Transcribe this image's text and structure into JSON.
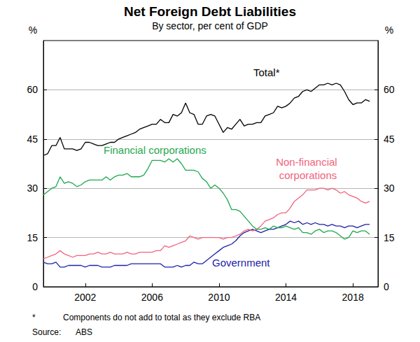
{
  "chart_data": {
    "type": "line",
    "title": "Net Foreign Debt Liabilities",
    "subtitle": "By sector, per cent of GDP",
    "y_unit": "%",
    "footnote_marker": "*",
    "footnote": "Components do not add to total as they exclude RBA",
    "source_label": "Source:",
    "source": "ABS",
    "xlim": [
      1999.5,
      2019.5
    ],
    "xticks": [
      2002,
      2006,
      2010,
      2014,
      2018
    ],
    "ylim": [
      0,
      75
    ],
    "yticks": [
      0,
      15,
      30,
      45,
      60
    ],
    "grid": true,
    "x": [
      1999.5,
      1999.75,
      2000,
      2000.25,
      2000.5,
      2000.75,
      2001,
      2001.25,
      2001.5,
      2001.75,
      2002,
      2002.25,
      2002.5,
      2002.75,
      2003,
      2003.25,
      2003.5,
      2003.75,
      2004,
      2004.25,
      2004.5,
      2004.75,
      2005,
      2005.25,
      2005.5,
      2005.75,
      2006,
      2006.25,
      2006.5,
      2006.75,
      2007,
      2007.25,
      2007.5,
      2007.75,
      2008,
      2008.25,
      2008.5,
      2008.75,
      2009,
      2009.25,
      2009.5,
      2009.75,
      2010,
      2010.25,
      2010.5,
      2010.75,
      2011,
      2011.25,
      2011.5,
      2011.75,
      2012,
      2012.25,
      2012.5,
      2012.75,
      2013,
      2013.25,
      2013.5,
      2013.75,
      2014,
      2014.25,
      2014.5,
      2014.75,
      2015,
      2015.25,
      2015.5,
      2015.75,
      2016,
      2016.25,
      2016.5,
      2016.75,
      2017,
      2017.25,
      2017.5,
      2017.75,
      2018,
      2018.25,
      2018.5,
      2018.75,
      2019
    ],
    "series": [
      {
        "name": "Total*",
        "color": "#000000",
        "values": [
          40,
          40.5,
          43,
          43,
          45.5,
          42,
          42,
          42,
          41.5,
          42,
          44,
          44,
          43.5,
          43,
          43,
          43.5,
          44,
          44,
          45,
          45.5,
          46,
          46.5,
          47,
          48,
          48.5,
          49,
          49.5,
          49.5,
          51,
          50,
          50,
          52.5,
          52,
          53,
          56,
          53,
          52.5,
          49.5,
          49.5,
          52,
          52.5,
          52,
          49.5,
          47,
          48.5,
          48,
          49.5,
          51,
          49,
          49.5,
          49.5,
          50,
          50,
          52,
          52.5,
          53,
          55,
          54.5,
          55,
          56,
          57.5,
          58,
          59.5,
          60,
          59.5,
          60.5,
          61.5,
          61.5,
          62,
          61.5,
          62,
          61.5,
          59.5,
          57,
          55.5,
          56,
          56,
          57,
          56.5
        ]
      },
      {
        "name": "Financial corporations",
        "color": "#1fa84f",
        "values": [
          28,
          29,
          30,
          30.5,
          33.5,
          31.5,
          32,
          31.5,
          30.5,
          31,
          32,
          32.5,
          32.5,
          32.5,
          32.5,
          33.5,
          32.5,
          33.5,
          34,
          34,
          34.5,
          33.5,
          33.5,
          33.5,
          34,
          36,
          38.5,
          38.5,
          38.5,
          38,
          39,
          38,
          39,
          37.5,
          35.5,
          35.5,
          35.5,
          35,
          33,
          32,
          30,
          31,
          30,
          28.5,
          26.5,
          23.5,
          23.5,
          23,
          21.5,
          20,
          18.5,
          17.5,
          17.5,
          18,
          17.5,
          18.5,
          18,
          18,
          18.5,
          18,
          17.5,
          18,
          16.5,
          16.5,
          16,
          17,
          17.5,
          16.5,
          17,
          17,
          16.5,
          15.5,
          14.5,
          15,
          17,
          16.5,
          17,
          17,
          16
        ]
      },
      {
        "name": "Non-financial corporations",
        "color": "#f2637e",
        "values": [
          8.5,
          9,
          9.5,
          10,
          11,
          10,
          9.5,
          9,
          9.5,
          9.5,
          9.5,
          10,
          10,
          10.5,
          10,
          10,
          10.5,
          10,
          10,
          10,
          10.5,
          10,
          10,
          10.5,
          10.5,
          10.5,
          10.5,
          11,
          11,
          12.5,
          12,
          12.5,
          13,
          13.5,
          14,
          15.5,
          15,
          14.5,
          15,
          15,
          15,
          15,
          15,
          14.5,
          15,
          15,
          15.5,
          16,
          17,
          17.5,
          17,
          17.5,
          18.5,
          20,
          20.5,
          21,
          22,
          22.5,
          22.5,
          24,
          26,
          27,
          28,
          29.5,
          29.5,
          29.5,
          30,
          30,
          29.5,
          30,
          29.5,
          28.5,
          29,
          28,
          27.5,
          27,
          26,
          25.5,
          26
        ]
      },
      {
        "name": "Government",
        "color": "#1c22a8",
        "values": [
          7.5,
          7,
          7,
          7.5,
          6,
          6,
          6.5,
          6.5,
          6.5,
          6.5,
          6,
          6.5,
          6.5,
          6.5,
          6,
          6,
          6,
          6.5,
          6.5,
          6.5,
          6.5,
          7,
          7,
          7,
          7,
          7,
          7,
          7,
          7,
          6,
          6,
          6,
          6.5,
          6,
          6.5,
          6.5,
          7.5,
          7,
          7,
          8,
          9,
          10,
          11,
          12,
          12.5,
          13,
          14,
          15.5,
          16.5,
          17,
          17.5,
          17,
          16.5,
          17,
          17.5,
          17.5,
          18,
          18.5,
          19,
          20,
          19.5,
          20,
          19,
          19.5,
          19,
          19.5,
          19,
          19,
          18.5,
          19,
          18.5,
          18.5,
          18,
          18.5,
          18.5,
          18,
          18.5,
          19,
          19
        ]
      }
    ]
  }
}
